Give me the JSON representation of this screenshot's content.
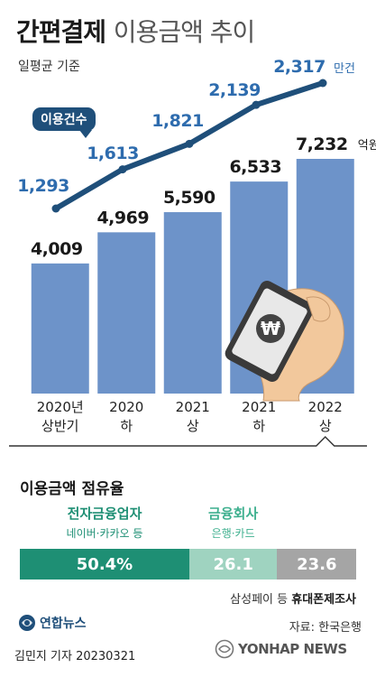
{
  "header": {
    "title_bold": "간편결제",
    "title_rest": "이용금액 추이",
    "subtitle": "일평균 기준"
  },
  "chart_data": {
    "type": "bar",
    "categories": [
      {
        "line1": "2020년",
        "line2": "상반기"
      },
      {
        "line1": "2020",
        "line2": "하"
      },
      {
        "line1": "2021",
        "line2": "상"
      },
      {
        "line1": "2021",
        "line2": "하"
      },
      {
        "line1": "2022",
        "line2": "상"
      }
    ],
    "series": [
      {
        "values": [
          4009,
          4969,
          5590,
          6533,
          7232
        ],
        "unit": "억원",
        "type": "bar"
      },
      {
        "name": "이용건수",
        "values": [
          1293,
          1613,
          1821,
          2139,
          2317
        ],
        "unit": "만건",
        "type": "line"
      }
    ],
    "bar_labels": [
      "4,009",
      "4,969",
      "5,590",
      "6,533",
      "7,232"
    ],
    "line_labels": [
      "1,293",
      "1,613",
      "1,821",
      "2,139",
      "2,317"
    ],
    "bar_unit_label": "억원",
    "line_unit_label": "만건",
    "callout": "이용건수",
    "colors": {
      "bar": "#6d93c9",
      "line": "#1f4f7a",
      "line_labels": "#2e6cae",
      "phone_body": "#3a3a3a",
      "phone_screen": "#e8e8e8"
    },
    "highlighted_category_index": 4
  },
  "share": {
    "title": "이용금액 점유율",
    "segments": [
      {
        "label": "전자금융업자",
        "sub": "네이버·카카오 등",
        "value": "50.4%",
        "pct": 50.4,
        "color": "#1e8f74"
      },
      {
        "label": "금융회사",
        "sub": "은행·카드",
        "value": "26.1",
        "pct": 26.1,
        "color": "#9fd3c0"
      },
      {
        "label": "",
        "sub": "",
        "value": "23.6",
        "pct": 23.6,
        "color": "#a5a5a5"
      }
    ],
    "note_prefix": "삼성페이 등",
    "note_bold": "휴대폰제조사"
  },
  "footer": {
    "logo_text": "연합뉴스",
    "source": "자료: 한국은행",
    "credit": "김민지 기자  20230321",
    "watermark": "YONHAP NEWS"
  }
}
